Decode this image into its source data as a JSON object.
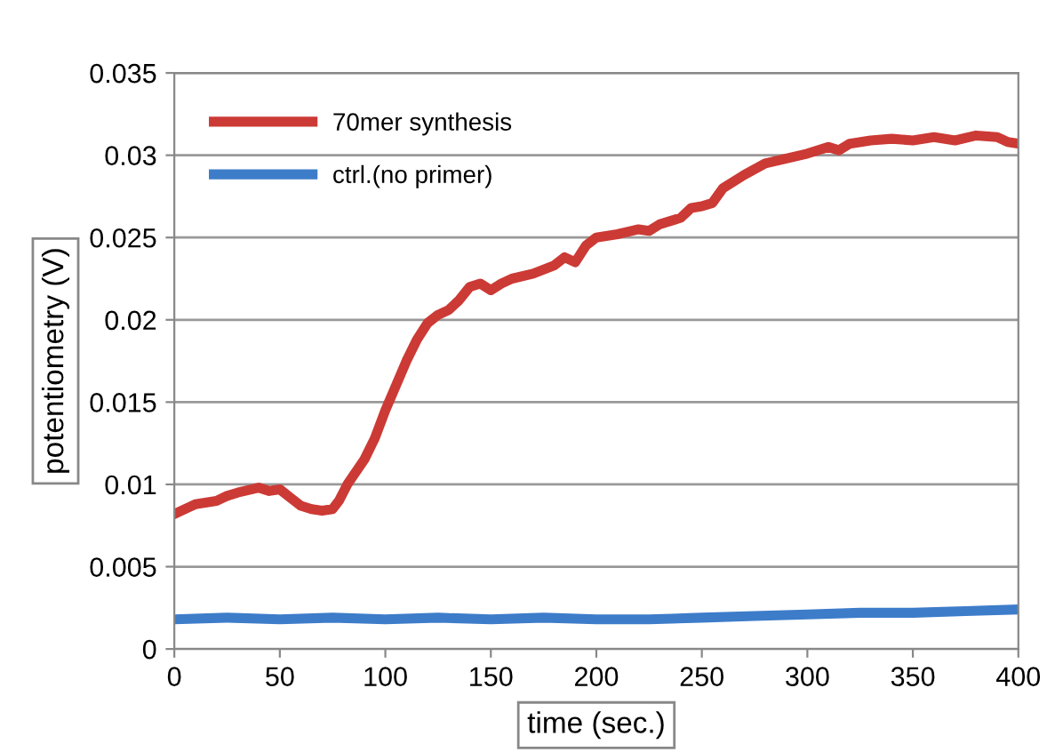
{
  "chart_data": {
    "type": "line",
    "xlabel": "time (sec.)",
    "ylabel": "potentiometry (V)",
    "xlim": [
      0,
      400
    ],
    "xticks": [
      0,
      50,
      100,
      150,
      200,
      250,
      300,
      350,
      400
    ],
    "ylim": [
      0,
      0.035
    ],
    "yticks": [
      0,
      0.005,
      0.01,
      0.015,
      0.02,
      0.025,
      0.03,
      0.035
    ],
    "grid": "y",
    "legend": "top left",
    "marker": "none",
    "line_style": "solid",
    "series": [
      {
        "name": "70mer synthesis",
        "color": "#cc3a35",
        "x": [
          0,
          5,
          10,
          20,
          25,
          30,
          40,
          45,
          50,
          55,
          60,
          65,
          70,
          75,
          78,
          82,
          90,
          95,
          100,
          105,
          110,
          115,
          120,
          125,
          130,
          135,
          140,
          145,
          150,
          155,
          160,
          170,
          180,
          185,
          190,
          195,
          200,
          210,
          220,
          225,
          230,
          240,
          245,
          250,
          255,
          260,
          270,
          280,
          290,
          300,
          310,
          315,
          320,
          330,
          340,
          350,
          360,
          370,
          380,
          390,
          395,
          400
        ],
        "values": [
          0.0082,
          0.0085,
          0.0088,
          0.009,
          0.0093,
          0.0095,
          0.0098,
          0.0096,
          0.0097,
          0.0092,
          0.0087,
          0.0085,
          0.0084,
          0.0085,
          0.009,
          0.01,
          0.0115,
          0.0128,
          0.0145,
          0.016,
          0.0175,
          0.0188,
          0.0198,
          0.0203,
          0.0206,
          0.0212,
          0.022,
          0.0222,
          0.0218,
          0.0222,
          0.0225,
          0.0228,
          0.0233,
          0.0238,
          0.0235,
          0.0245,
          0.025,
          0.0252,
          0.0255,
          0.0254,
          0.0258,
          0.0262,
          0.0268,
          0.0269,
          0.0271,
          0.028,
          0.0288,
          0.0295,
          0.0298,
          0.0301,
          0.0305,
          0.0303,
          0.0307,
          0.0309,
          0.031,
          0.0309,
          0.0311,
          0.0309,
          0.0312,
          0.0311,
          0.0308,
          0.0307
        ]
      },
      {
        "name": "ctrl.(no primer)",
        "color": "#3d7cc9",
        "x": [
          0,
          25,
          50,
          75,
          100,
          125,
          150,
          175,
          200,
          225,
          250,
          275,
          300,
          325,
          350,
          375,
          400
        ],
        "values": [
          0.0018,
          0.0019,
          0.0018,
          0.0019,
          0.0018,
          0.0019,
          0.0018,
          0.0019,
          0.0018,
          0.0018,
          0.0019,
          0.002,
          0.0021,
          0.0022,
          0.0022,
          0.0023,
          0.0024
        ]
      }
    ]
  }
}
